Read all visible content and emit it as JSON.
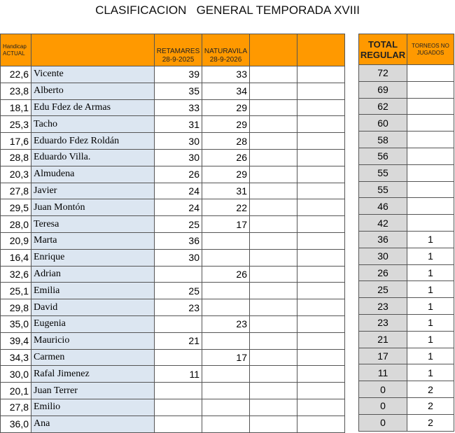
{
  "title": "CLASIFICACION   GENERAL TEMPORADA XVIII",
  "headers": {
    "handicap_line1": "Handicap",
    "handicap_line2": "ACTUAL",
    "event1_name": "RETAMARES",
    "event1_date": "28-9-2025",
    "event2_name": "NATURAVILA",
    "event2_date": "28-9-2026",
    "total_line1": "TOTAL",
    "total_line2": "REGULAR",
    "not_played_line1": "TORNEOS  NO",
    "not_played_line2": "JUGADOS"
  },
  "rows": [
    {
      "handicap": "22,6",
      "name": "Vicente",
      "e1": "39",
      "e2": "33",
      "total": "72",
      "np": ""
    },
    {
      "handicap": "23,8",
      "name": "Alberto",
      "e1": "35",
      "e2": "34",
      "total": "69",
      "np": ""
    },
    {
      "handicap": "18,1",
      "name": "Edu Fdez de Armas",
      "e1": "33",
      "e2": "29",
      "total": "62",
      "np": ""
    },
    {
      "handicap": "25,3",
      "name": "Tacho",
      "e1": "31",
      "e2": "29",
      "total": "60",
      "np": ""
    },
    {
      "handicap": "17,6",
      "name": "Eduardo Fdez Roldán",
      "e1": "30",
      "e2": "28",
      "total": "58",
      "np": ""
    },
    {
      "handicap": "28,8",
      "name": "Eduardo Villa.",
      "e1": "30",
      "e2": "26",
      "total": "56",
      "np": ""
    },
    {
      "handicap": "20,3",
      "name": "Almudena",
      "e1": "26",
      "e2": "29",
      "total": "55",
      "np": ""
    },
    {
      "handicap": "27,8",
      "name": "Javier",
      "e1": "24",
      "e2": "31",
      "total": "55",
      "np": ""
    },
    {
      "handicap": "29,5",
      "name": "Juan Montón",
      "e1": "24",
      "e2": "22",
      "total": "46",
      "np": ""
    },
    {
      "handicap": "28,0",
      "name": "Teresa",
      "e1": "25",
      "e2": "17",
      "total": "42",
      "np": ""
    },
    {
      "handicap": "20,9",
      "name": "Marta",
      "e1": "36",
      "e2": "",
      "total": "36",
      "np": "1"
    },
    {
      "handicap": "16,4",
      "name": "Enrique",
      "e1": "30",
      "e2": "",
      "total": "30",
      "np": "1"
    },
    {
      "handicap": "32,6",
      "name": "Adrian",
      "e1": "",
      "e2": "26",
      "total": "26",
      "np": "1"
    },
    {
      "handicap": "25,1",
      "name": "Emilia",
      "e1": "25",
      "e2": "",
      "total": "25",
      "np": "1"
    },
    {
      "handicap": "29,8",
      "name": "David",
      "e1": "23",
      "e2": "",
      "total": "23",
      "np": "1"
    },
    {
      "handicap": "35,0",
      "name": "Eugenia",
      "e1": "",
      "e2": "23",
      "total": "23",
      "np": "1"
    },
    {
      "handicap": "39,4",
      "name": "Mauricio",
      "e1": "21",
      "e2": "",
      "total": "21",
      "np": "1"
    },
    {
      "handicap": "34,3",
      "name": "Carmen",
      "e1": "",
      "e2": "17",
      "total": "17",
      "np": "1"
    },
    {
      "handicap": "30,0",
      "name": "Rafal Jimenez",
      "e1": "11",
      "e2": "",
      "total": "11",
      "np": "1"
    },
    {
      "handicap": "20,1",
      "name": "Juan Terrer",
      "e1": "",
      "e2": "",
      "total": "0",
      "np": "2"
    },
    {
      "handicap": "27,8",
      "name": "Emilio",
      "e1": "",
      "e2": "",
      "total": "0",
      "np": "2"
    },
    {
      "handicap": "36,0",
      "name": "Ana",
      "e1": "",
      "e2": "",
      "total": "0",
      "np": "2"
    }
  ],
  "colors": {
    "header": "#ff9900",
    "name_bg": "#dce6f1",
    "total_bg": "#d9d9d9"
  }
}
